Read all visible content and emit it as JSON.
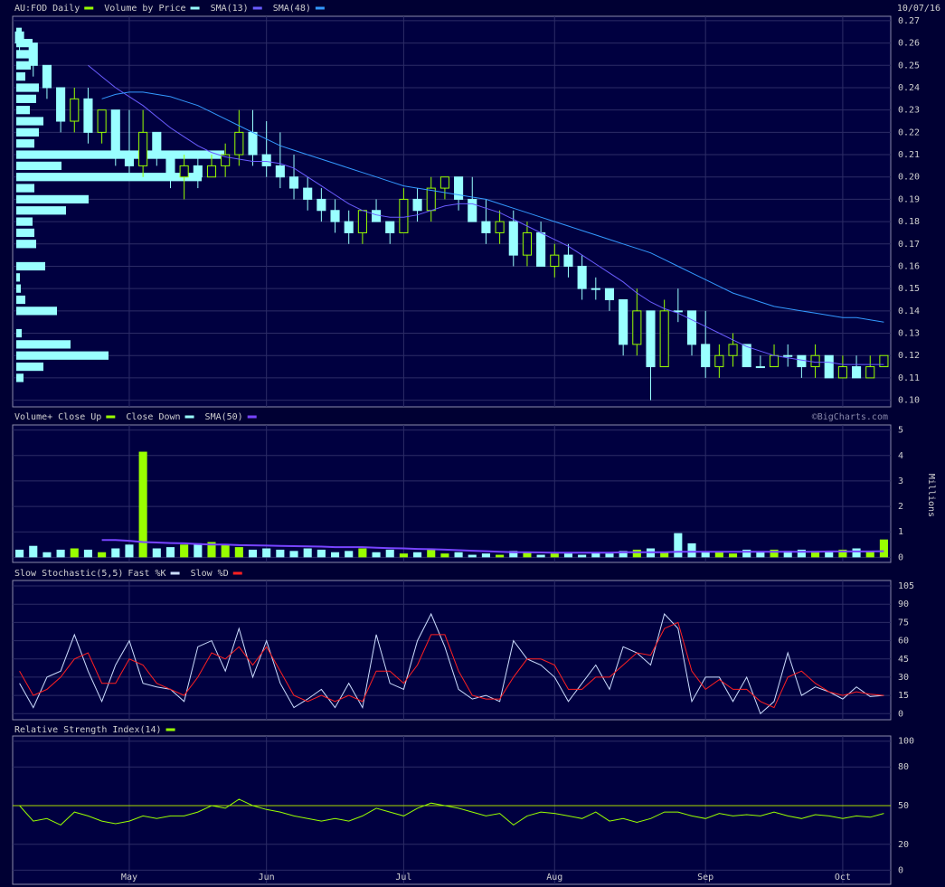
{
  "chart_data": [
    {
      "type": "candlestick",
      "date": "10/07/16",
      "categories": [
        null,
        null,
        null,
        null,
        null,
        null,
        null,
        null,
        "May",
        null,
        null,
        null,
        null,
        null,
        null,
        null,
        null,
        null,
        "Jun",
        null,
        null,
        null,
        null,
        null,
        null,
        null,
        null,
        null,
        "Jul",
        null,
        null,
        null,
        null,
        null,
        null,
        null,
        null,
        null,
        null,
        "Aug",
        null,
        null,
        null,
        null,
        null,
        null,
        null,
        null,
        null,
        null,
        "Sep",
        null,
        null,
        null,
        null,
        null,
        null,
        null,
        null,
        null,
        "Oct",
        null,
        null,
        null
      ],
      "series": [
        {
          "name": "AU:FOD Daily",
          "color": "#99ff00",
          "down_color": "#99ffff",
          "open": [
            0.265,
            0.26,
            0.25,
            0.24,
            0.225,
            0.235,
            0.22,
            0.23,
            0.21,
            0.205,
            0.22,
            0.21,
            0.2,
            0.205,
            0.2,
            0.205,
            0.21,
            0.22,
            0.21,
            0.205,
            0.2,
            0.195,
            0.19,
            0.185,
            0.18,
            0.175,
            0.185,
            0.18,
            0.175,
            0.19,
            0.185,
            0.195,
            0.2,
            0.19,
            0.18,
            0.175,
            0.18,
            0.165,
            0.175,
            0.16,
            0.165,
            0.16,
            0.15,
            0.15,
            0.145,
            0.125,
            0.14,
            0.115,
            0.14,
            0.14,
            0.125,
            0.115,
            0.12,
            0.125,
            0.115,
            0.115,
            0.12,
            0.12,
            0.115,
            0.12,
            0.11,
            0.115,
            0.11,
            0.115
          ],
          "high": [
            0.265,
            0.26,
            0.25,
            0.24,
            0.24,
            0.24,
            0.23,
            0.23,
            0.23,
            0.23,
            0.22,
            0.21,
            0.21,
            0.21,
            0.21,
            0.215,
            0.23,
            0.23,
            0.225,
            0.22,
            0.21,
            0.2,
            0.195,
            0.19,
            0.185,
            0.185,
            0.19,
            0.18,
            0.195,
            0.195,
            0.2,
            0.2,
            0.2,
            0.2,
            0.19,
            0.185,
            0.185,
            0.18,
            0.18,
            0.17,
            0.17,
            0.165,
            0.155,
            0.15,
            0.145,
            0.15,
            0.14,
            0.145,
            0.15,
            0.14,
            0.14,
            0.125,
            0.13,
            0.125,
            0.12,
            0.125,
            0.125,
            0.12,
            0.125,
            0.12,
            0.12,
            0.12,
            0.12,
            0.12
          ],
          "low": [
            0.255,
            0.245,
            0.235,
            0.22,
            0.22,
            0.215,
            0.215,
            0.205,
            0.2,
            0.2,
            0.205,
            0.195,
            0.19,
            0.195,
            0.2,
            0.2,
            0.205,
            0.205,
            0.2,
            0.195,
            0.19,
            0.185,
            0.18,
            0.175,
            0.17,
            0.17,
            0.18,
            0.17,
            0.175,
            0.18,
            0.18,
            0.19,
            0.185,
            0.18,
            0.17,
            0.17,
            0.16,
            0.16,
            0.16,
            0.155,
            0.155,
            0.145,
            0.145,
            0.14,
            0.12,
            0.12,
            0.1,
            0.115,
            0.135,
            0.12,
            0.11,
            0.11,
            0.115,
            0.115,
            0.115,
            0.115,
            0.115,
            0.11,
            0.11,
            0.11,
            0.11,
            0.11,
            0.11,
            0.115
          ],
          "close": [
            0.26,
            0.25,
            0.24,
            0.225,
            0.235,
            0.22,
            0.23,
            0.21,
            0.205,
            0.22,
            0.21,
            0.2,
            0.205,
            0.2,
            0.205,
            0.21,
            0.22,
            0.21,
            0.205,
            0.2,
            0.195,
            0.19,
            0.185,
            0.18,
            0.175,
            0.185,
            0.18,
            0.175,
            0.19,
            0.185,
            0.195,
            0.2,
            0.19,
            0.18,
            0.175,
            0.18,
            0.165,
            0.175,
            0.16,
            0.165,
            0.16,
            0.15,
            0.15,
            0.145,
            0.125,
            0.14,
            0.115,
            0.14,
            0.14,
            0.125,
            0.115,
            0.12,
            0.125,
            0.115,
            0.115,
            0.12,
            0.12,
            0.115,
            0.12,
            0.11,
            0.115,
            0.11,
            0.115,
            0.12
          ]
        }
      ],
      "volume_by_price": {
        "name": "Volume by Price",
        "color": "#99ffff",
        "prices": [
          0.265,
          0.26,
          0.255,
          0.25,
          0.245,
          0.24,
          0.235,
          0.23,
          0.225,
          0.22,
          0.215,
          0.21,
          0.205,
          0.2,
          0.195,
          0.19,
          0.185,
          0.18,
          0.175,
          0.17,
          0.16,
          0.155,
          0.15,
          0.145,
          0.14,
          0.13,
          0.125,
          0.12,
          0.115,
          0.11
        ],
        "values": [
          6,
          18,
          20,
          16,
          10,
          25,
          22,
          15,
          30,
          25,
          20,
          230,
          50,
          205,
          20,
          80,
          55,
          18,
          20,
          22,
          32,
          4,
          5,
          10,
          45,
          6,
          60,
          102,
          30,
          8
        ]
      },
      "overlays": [
        {
          "name": "SMA(13)",
          "color": "#6a5cff",
          "values": [
            null,
            null,
            null,
            null,
            null,
            0.25,
            0.245,
            0.24,
            0.236,
            0.232,
            0.227,
            0.222,
            0.218,
            0.214,
            0.211,
            0.209,
            0.208,
            0.207,
            0.207,
            0.206,
            0.204,
            0.2,
            0.196,
            0.192,
            0.188,
            0.185,
            0.183,
            0.182,
            0.182,
            0.183,
            0.185,
            0.187,
            0.188,
            0.188,
            0.186,
            0.184,
            0.181,
            0.178,
            0.175,
            0.172,
            0.169,
            0.165,
            0.161,
            0.157,
            0.153,
            0.148,
            0.144,
            0.141,
            0.139,
            0.136,
            0.133,
            0.13,
            0.127,
            0.124,
            0.122,
            0.12,
            0.119,
            0.118,
            0.117,
            0.117,
            0.116,
            0.116,
            0.116,
            0.116
          ]
        },
        {
          "name": "SMA(48)",
          "color": "#3399ff",
          "values": [
            null,
            null,
            null,
            null,
            null,
            null,
            0.235,
            0.237,
            0.238,
            0.238,
            0.237,
            0.236,
            0.234,
            0.232,
            0.229,
            0.226,
            0.223,
            0.22,
            0.217,
            0.214,
            0.212,
            0.21,
            0.208,
            0.206,
            0.204,
            0.202,
            0.2,
            0.198,
            0.196,
            0.195,
            0.194,
            0.193,
            0.192,
            0.191,
            0.19,
            0.188,
            0.186,
            0.184,
            0.182,
            0.18,
            0.178,
            0.176,
            0.174,
            0.172,
            0.17,
            0.168,
            0.166,
            0.163,
            0.16,
            0.157,
            0.154,
            0.151,
            0.148,
            0.146,
            0.144,
            0.142,
            0.141,
            0.14,
            0.139,
            0.138,
            0.137,
            0.137,
            0.136,
            0.135
          ]
        }
      ],
      "ylim": [
        0.097,
        0.272
      ],
      "yticks": [
        {
          "value": 0.1,
          "label": "0.10"
        },
        0.11,
        0.12,
        0.13,
        0.14,
        0.15,
        0.16,
        0.17,
        0.18,
        0.19,
        {
          "value": 0.2,
          "label": "0.20"
        },
        0.21,
        0.22,
        0.23,
        0.24,
        0.25,
        0.26,
        0.27
      ],
      "grid": true
    },
    {
      "type": "bar",
      "ylabel": "Millions",
      "credit": "©BigCharts.com",
      "legend": [
        {
          "name": "Volume+ Close Up",
          "color": "#99ff00"
        },
        {
          "name": "Close Down",
          "color": "#99ffff"
        }
      ],
      "values": [
        0.3,
        0.45,
        0.2,
        0.3,
        0.35,
        0.3,
        0.2,
        0.35,
        0.5,
        4.15,
        0.35,
        0.4,
        0.5,
        0.55,
        0.6,
        0.5,
        0.4,
        0.3,
        0.35,
        0.3,
        0.25,
        0.35,
        0.3,
        0.2,
        0.25,
        0.35,
        0.2,
        0.3,
        0.15,
        0.2,
        0.35,
        0.15,
        0.2,
        0.1,
        0.15,
        0.1,
        0.25,
        0.2,
        0.1,
        0.15,
        0.15,
        0.1,
        0.2,
        0.15,
        0.25,
        0.3,
        0.35,
        0.2,
        0.95,
        0.55,
        0.2,
        0.2,
        0.15,
        0.3,
        0.2,
        0.3,
        0.25,
        0.3,
        0.25,
        0.2,
        0.3,
        0.35,
        0.25,
        0.7
      ],
      "sma": {
        "name": "SMA(50)",
        "color": "#7744ff",
        "values": [
          null,
          null,
          null,
          null,
          null,
          null,
          0.68,
          0.68,
          0.65,
          0.6,
          0.58,
          0.56,
          0.55,
          0.52,
          0.5,
          0.5,
          0.48,
          0.47,
          0.46,
          0.45,
          0.44,
          0.43,
          0.42,
          0.4,
          0.4,
          0.4,
          0.38,
          0.36,
          0.35,
          0.33,
          0.32,
          0.3,
          0.28,
          0.26,
          0.24,
          0.22,
          0.2,
          0.2,
          0.19,
          0.18,
          0.18,
          0.18,
          0.18,
          0.18,
          0.2,
          0.2,
          0.2,
          0.2,
          0.22,
          0.22,
          0.22,
          0.22,
          0.22,
          0.22,
          0.22,
          0.22,
          0.22,
          0.22,
          0.22,
          0.23,
          0.23,
          0.23,
          0.23,
          0.24
        ]
      },
      "ylim": [
        -0.2,
        5.2
      ],
      "yticks": [
        0,
        1,
        2,
        3,
        4,
        5
      ],
      "grid": true
    },
    {
      "type": "line",
      "title": "Slow Stochastic(5,5)",
      "series": [
        {
          "name": "Fast %K",
          "color": "#ccddff",
          "values": [
            25,
            5,
            30,
            35,
            65,
            35,
            10,
            40,
            60,
            25,
            22,
            20,
            10,
            55,
            60,
            35,
            70,
            30,
            60,
            25,
            5,
            12,
            20,
            5,
            25,
            5,
            65,
            25,
            20,
            60,
            82,
            55,
            20,
            12,
            15,
            10,
            60,
            45,
            40,
            30,
            10,
            25,
            40,
            20,
            55,
            50,
            40,
            82,
            70,
            10,
            30,
            30,
            10,
            30,
            0,
            10,
            50,
            15,
            22,
            18,
            12,
            22,
            14,
            15
          ]
        },
        {
          "name": "Slow %D",
          "color": "#ff2020",
          "values": [
            35,
            15,
            20,
            30,
            45,
            50,
            25,
            25,
            45,
            40,
            25,
            20,
            15,
            30,
            50,
            45,
            55,
            40,
            55,
            35,
            15,
            10,
            15,
            10,
            15,
            10,
            35,
            35,
            25,
            40,
            65,
            65,
            35,
            15,
            12,
            12,
            30,
            45,
            45,
            40,
            20,
            20,
            30,
            30,
            40,
            50,
            48,
            70,
            75,
            35,
            20,
            28,
            20,
            20,
            10,
            5,
            30,
            35,
            25,
            18,
            15,
            18,
            16,
            15
          ]
        }
      ],
      "ylim": [
        -5,
        109.5
      ],
      "yticks": [
        0,
        15,
        30,
        45,
        60,
        75,
        90,
        105
      ],
      "grid": true
    },
    {
      "type": "line",
      "series": [
        {
          "name": "Relative Strength Index(14)",
          "color": "#99ff00",
          "values": [
            50,
            38,
            40,
            35,
            45,
            42,
            38,
            36,
            38,
            42,
            40,
            42,
            42,
            45,
            50,
            48,
            55,
            50,
            47,
            45,
            42,
            40,
            38,
            40,
            38,
            42,
            48,
            45,
            42,
            48,
            52,
            50,
            48,
            45,
            42,
            44,
            35,
            42,
            45,
            44,
            42,
            40,
            45,
            38,
            40,
            37,
            40,
            45,
            45,
            42,
            40,
            44,
            42,
            43,
            42,
            45,
            42,
            40,
            43,
            42,
            40,
            42,
            41,
            44
          ]
        }
      ],
      "reference": {
        "value": 50,
        "color": "#aadd00"
      },
      "ylim": [
        -11,
        104
      ],
      "yticks": [
        0,
        20,
        50,
        80,
        100
      ],
      "grid": true
    }
  ]
}
